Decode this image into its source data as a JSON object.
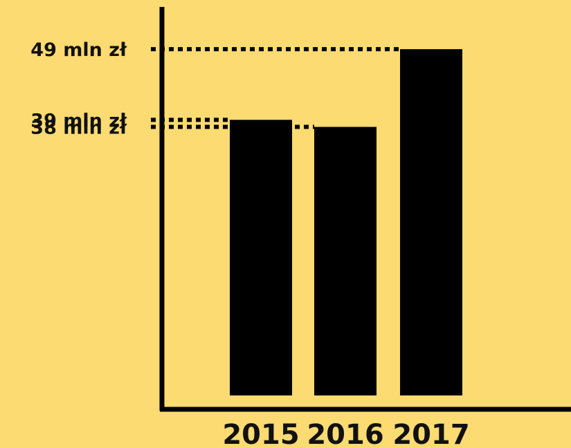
{
  "chart_data": {
    "type": "bar",
    "categories": [
      "2015",
      "2016",
      "2017"
    ],
    "values": [
      39,
      38,
      49
    ],
    "value_labels": [
      "39 mln zł",
      "38 mln zł",
      "49 mln zł"
    ],
    "ylim": [
      0,
      54
    ],
    "grid": false,
    "legend": "none",
    "colors": {
      "bar": "#000000",
      "background": "#FCDB72",
      "text": "#111111"
    }
  }
}
